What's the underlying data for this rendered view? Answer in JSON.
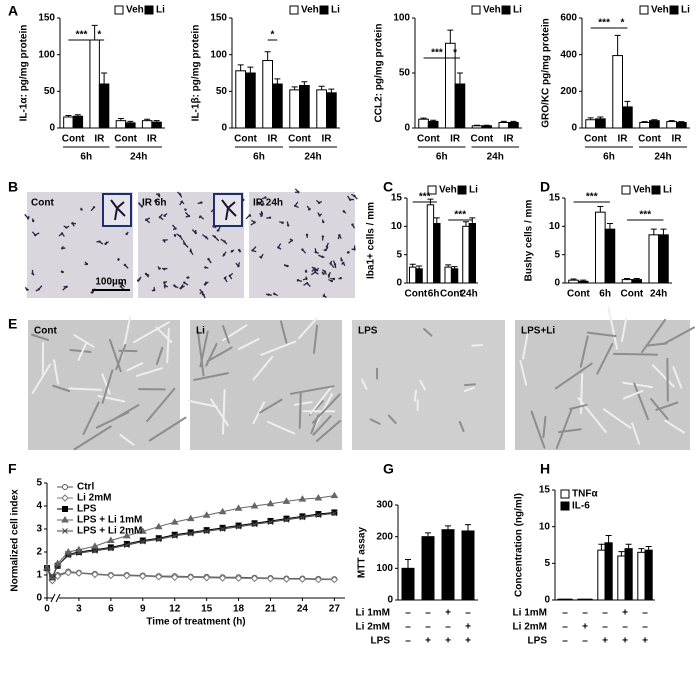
{
  "panel_labels": [
    "A",
    "B",
    "C",
    "D",
    "E",
    "F",
    "G",
    "H"
  ],
  "panel_B": {
    "labels": [
      "Cont",
      "IR 6h",
      "IR 24h"
    ],
    "scale_bar": "100µm"
  },
  "panel_E": {
    "labels": [
      "Cont",
      "Li",
      "LPS",
      "LPS+Li"
    ]
  },
  "chart_data": [
    {
      "type": "bar",
      "y_label": "IL-1α: pg/mg protein",
      "categories": [
        "Cont",
        "IR",
        "Cont",
        "IR"
      ],
      "category_groups": [
        "6h",
        "24h"
      ],
      "series": [
        {
          "name": "Veh",
          "color": "#ffffff",
          "values": [
            15,
            120,
            10,
            10
          ],
          "errors": [
            2,
            20,
            3,
            2
          ]
        },
        {
          "name": "Li",
          "color": "#000000",
          "values": [
            16,
            60,
            7,
            8
          ],
          "errors": [
            2,
            15,
            2,
            2
          ]
        }
      ],
      "ylim": [
        0,
        150
      ],
      "yticks": [
        0,
        50,
        100,
        150
      ],
      "legend": "top-right",
      "annotations": [
        "***",
        "*"
      ]
    },
    {
      "type": "bar",
      "y_label": "IL-1β: pg/mg protein",
      "categories": [
        "Cont",
        "IR",
        "Cont",
        "IR"
      ],
      "category_groups": [
        "6h",
        "24h"
      ],
      "series": [
        {
          "name": "Veh",
          "color": "#ffffff",
          "values": [
            78,
            92,
            52,
            52
          ],
          "errors": [
            8,
            12,
            4,
            5
          ]
        },
        {
          "name": "Li",
          "color": "#000000",
          "values": [
            75,
            60,
            58,
            48
          ],
          "errors": [
            8,
            7,
            5,
            5
          ]
        }
      ],
      "ylim": [
        0,
        150
      ],
      "yticks": [
        0,
        50,
        100,
        150
      ],
      "legend": "top-right",
      "annotations": [
        "*"
      ]
    },
    {
      "type": "bar",
      "y_label": "CCL2: pg/mg protein",
      "categories": [
        "Cont",
        "IR",
        "Cont",
        "IR"
      ],
      "category_groups": [
        "6h",
        "24h"
      ],
      "series": [
        {
          "name": "Veh",
          "color": "#ffffff",
          "values": [
            8,
            77,
            2,
            5
          ],
          "errors": [
            1,
            12,
            0.5,
            1
          ]
        },
        {
          "name": "Li",
          "color": "#000000",
          "values": [
            6,
            40,
            2,
            5
          ],
          "errors": [
            1,
            10,
            0.5,
            1
          ]
        }
      ],
      "ylim": [
        0,
        100
      ],
      "yticks": [
        0,
        50,
        100
      ],
      "legend": "top-right",
      "annotations": [
        "***",
        "*"
      ]
    },
    {
      "type": "bar",
      "y_label": "GRO/KC pg/mg protein",
      "categories": [
        "Cont",
        "IR",
        "Cont",
        "IR"
      ],
      "category_groups": [
        "6h",
        "24h"
      ],
      "series": [
        {
          "name": "Veh",
          "color": "#ffffff",
          "values": [
            45,
            395,
            30,
            35
          ],
          "errors": [
            10,
            110,
            5,
            5
          ]
        },
        {
          "name": "Li",
          "color": "#000000",
          "values": [
            50,
            115,
            40,
            30
          ],
          "errors": [
            10,
            30,
            5,
            5
          ]
        }
      ],
      "ylim": [
        0,
        600
      ],
      "yticks": [
        0,
        200,
        400,
        600
      ],
      "legend": "top-right",
      "annotations": [
        "***",
        "*"
      ]
    },
    {
      "type": "bar",
      "y_label": "Iba1+ cells / mm",
      "categories": [
        "Cont",
        "6h",
        "Cont",
        "24h"
      ],
      "series": [
        {
          "name": "Veh",
          "color": "#ffffff",
          "values": [
            2.8,
            13.8,
            2.8,
            10
          ],
          "errors": [
            0.5,
            1,
            0.4,
            0.8
          ]
        },
        {
          "name": "Li",
          "color": "#000000",
          "values": [
            2.5,
            10.5,
            2.5,
            10.5
          ],
          "errors": [
            0.5,
            1,
            0.4,
            1
          ]
        }
      ],
      "ylim": [
        0,
        15
      ],
      "yticks": [
        0,
        5,
        10,
        15
      ],
      "legend": "top-right",
      "annotations": [
        "***",
        "***"
      ]
    },
    {
      "type": "bar",
      "y_label": "Bushy cells / mm",
      "categories": [
        "Cont",
        "6h",
        "Cont",
        "24h"
      ],
      "series": [
        {
          "name": "Veh",
          "color": "#ffffff",
          "values": [
            0.5,
            12.5,
            0.6,
            8.5
          ],
          "errors": [
            0.2,
            1,
            0.2,
            1
          ]
        },
        {
          "name": "Li",
          "color": "#000000",
          "values": [
            0.3,
            9.5,
            0.6,
            8.5
          ],
          "errors": [
            0.2,
            1,
            0.2,
            1
          ]
        }
      ],
      "ylim": [
        0,
        15
      ],
      "yticks": [
        0,
        5,
        10,
        15
      ],
      "legend": "top-right",
      "annotations": [
        "***",
        "***"
      ]
    },
    {
      "type": "line",
      "x_label": "Time of treatment (h)",
      "y_label": "Normalized cell index",
      "x": [
        0,
        0.5,
        1,
        2,
        3,
        4.5,
        6,
        7.5,
        9,
        10.5,
        12,
        13.5,
        15,
        16.5,
        18,
        19.5,
        21,
        22.5,
        24,
        25.5,
        27
      ],
      "series": [
        {
          "name": "Ctrl",
          "color": "#555555",
          "marker": "circle-open",
          "values": [
            1.3,
            0.8,
            1.0,
            1.15,
            1.1,
            1.05,
            1.0,
            1.0,
            0.98,
            0.95,
            0.95,
            0.93,
            0.92,
            0.9,
            0.9,
            0.88,
            0.87,
            0.85,
            0.85,
            0.83,
            0.82
          ]
        },
        {
          "name": "Li 2mM",
          "color": "#777777",
          "marker": "diamond-open",
          "values": [
            1.25,
            0.75,
            0.95,
            1.1,
            1.08,
            1.02,
            0.98,
            0.97,
            0.95,
            0.92,
            0.9,
            0.9,
            0.88,
            0.87,
            0.86,
            0.85,
            0.84,
            0.82,
            0.82,
            0.8,
            0.8
          ]
        },
        {
          "name": "LPS",
          "color": "#000000",
          "marker": "square",
          "values": [
            1.3,
            0.9,
            1.4,
            1.9,
            2.0,
            2.1,
            2.2,
            2.35,
            2.5,
            2.6,
            2.75,
            2.85,
            2.95,
            3.05,
            3.15,
            3.25,
            3.35,
            3.45,
            3.55,
            3.65,
            3.72
          ]
        },
        {
          "name": "LPS + Li 1mM",
          "color": "#666666",
          "marker": "triangle",
          "values": [
            1.3,
            0.9,
            1.5,
            2.0,
            2.1,
            2.25,
            2.5,
            2.7,
            2.9,
            3.1,
            3.3,
            3.45,
            3.6,
            3.75,
            3.9,
            4.0,
            4.1,
            4.2,
            4.3,
            4.35,
            4.45
          ]
        },
        {
          "name": "LPS + Li 2mM",
          "color": "#444444",
          "marker": "x",
          "values": [
            1.3,
            0.9,
            1.4,
            1.85,
            1.95,
            2.05,
            2.15,
            2.3,
            2.45,
            2.55,
            2.7,
            2.8,
            2.9,
            3.0,
            3.1,
            3.2,
            3.3,
            3.4,
            3.5,
            3.6,
            3.68
          ]
        }
      ],
      "xlim": [
        0,
        28
      ],
      "xticks": [
        0,
        3,
        6,
        9,
        12,
        15,
        18,
        21,
        24,
        27
      ],
      "ylim": [
        0,
        5
      ],
      "yticks": [
        0,
        1,
        2,
        3,
        4,
        5
      ],
      "legend": "top-left"
    },
    {
      "type": "bar",
      "y_label": "MTT assay",
      "color": "#000000",
      "values": [
        100,
        200,
        222,
        218
      ],
      "errors": [
        28,
        12,
        12,
        20
      ],
      "ylim": [
        0,
        300
      ],
      "yticks": [
        0,
        100,
        200,
        300
      ],
      "treatment_rows": [
        {
          "label": "Li 1mM",
          "signs": [
            "–",
            "–",
            "+",
            "–"
          ]
        },
        {
          "label": "Li 2mM",
          "signs": [
            "–",
            "–",
            "–",
            "+"
          ]
        },
        {
          "label": "LPS",
          "signs": [
            "–",
            "+",
            "+",
            "+"
          ]
        }
      ]
    },
    {
      "type": "bar",
      "y_label": "Concentration (ng/ml)",
      "series": [
        {
          "name": "TNFα",
          "color": "#ffffff",
          "values": [
            0.1,
            0.1,
            6.8,
            6.0,
            6.5
          ],
          "errors": [
            0,
            0,
            0.8,
            0.6,
            0.5
          ]
        },
        {
          "name": "IL-6",
          "color": "#000000",
          "values": [
            0.1,
            0.1,
            7.8,
            7.0,
            6.8
          ],
          "errors": [
            0,
            0,
            1.0,
            0.6,
            0.5
          ]
        }
      ],
      "ylim": [
        0,
        15
      ],
      "yticks": [
        0,
        5,
        10,
        15
      ],
      "legend": "top-left",
      "treatment_rows": [
        {
          "label": "Li 1mM",
          "signs": [
            "–",
            "–",
            "–",
            "+",
            "–"
          ]
        },
        {
          "label": "Li 2mM",
          "signs": [
            "–",
            "+",
            "–",
            "–",
            "–"
          ]
        },
        {
          "label": "LPS",
          "signs": [
            "–",
            "–",
            "+",
            "+",
            "+"
          ]
        }
      ]
    }
  ]
}
